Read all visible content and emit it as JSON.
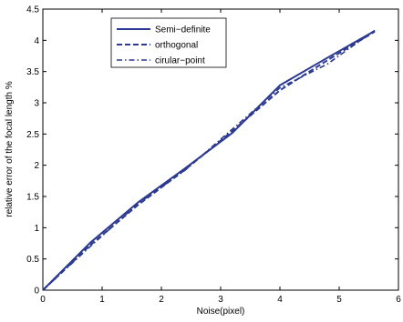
{
  "chart_data": {
    "type": "line",
    "xlabel": "Noise(pixel)",
    "ylabel": "relative error of the focal length %",
    "xlim": [
      0,
      6
    ],
    "ylim": [
      0,
      4.5
    ],
    "xticks": [
      "0",
      "1",
      "2",
      "3",
      "4",
      "5",
      "6"
    ],
    "yticks": [
      "0",
      "0.5",
      "1",
      "1.5",
      "2",
      "2.5",
      "3",
      "3.5",
      "4",
      "4.5"
    ],
    "grid": false,
    "legend_position": "top-left",
    "series": [
      {
        "name": "Semi−definite",
        "style": "solid",
        "color": "#2b3990",
        "x": [
          0,
          0.8,
          1.6,
          2.4,
          3.2,
          4.0,
          4.8,
          5.6
        ],
        "y": [
          0,
          0.76,
          1.4,
          1.95,
          2.52,
          3.28,
          3.72,
          4.15
        ]
      },
      {
        "name": "orthogonal",
        "style": "dashed",
        "color": "#2b3990",
        "x": [
          0,
          0.8,
          1.6,
          2.4,
          3.2,
          4.0,
          4.8,
          5.6
        ],
        "y": [
          0,
          0.72,
          1.36,
          1.93,
          2.55,
          3.2,
          3.68,
          4.14
        ]
      },
      {
        "name": "cirular−point",
        "style": "dashdot",
        "color": "#2b3990",
        "x": [
          0,
          0.8,
          1.6,
          2.4,
          3.2,
          4.0,
          4.8,
          5.6
        ],
        "y": [
          0,
          0.7,
          1.38,
          1.92,
          2.58,
          3.24,
          3.62,
          4.16
        ]
      }
    ]
  }
}
